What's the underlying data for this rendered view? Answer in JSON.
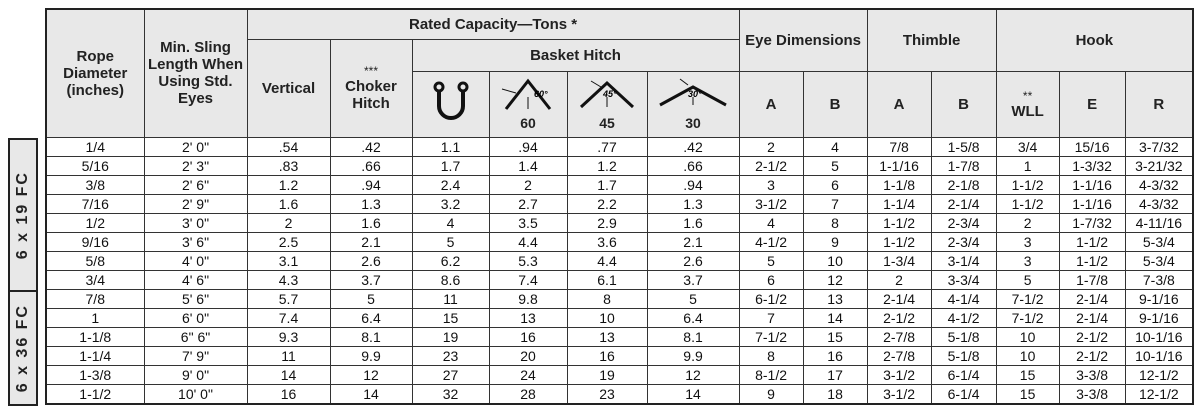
{
  "header": {
    "rope_diameter": "Rope Diameter (inches)",
    "min_sling_length": "Min. Sling Length When Using Std. Eyes",
    "rated_capacity": "Rated Capacity—Tons *",
    "vertical": "Vertical",
    "choker_note": "***",
    "choker_hitch": "Choker Hitch",
    "basket_hitch": "Basket Hitch",
    "eye_dimensions": "Eye Dimensions",
    "thimble": "Thimble",
    "hook": "Hook",
    "angles": [
      {
        "icon_label": "60°",
        "label": "60"
      },
      {
        "icon_label": "45°",
        "label": "45"
      },
      {
        "icon_label": "30°",
        "label": "30"
      }
    ],
    "eye_a": "A",
    "eye_b": "B",
    "thimble_a": "A",
    "thimble_b": "B",
    "wll_note": "**",
    "wll": "WLL",
    "e": "E",
    "r": "R"
  },
  "groups": [
    {
      "label": "6 x 19 FC",
      "rows": [
        [
          "1/4",
          "2' 0\"",
          ".54",
          ".42",
          "1.1",
          ".94",
          ".77",
          ".42",
          "2",
          "4",
          "7/8",
          "1-5/8",
          "3/4",
          "15/16",
          "3-7/32"
        ],
        [
          "5/16",
          "2' 3\"",
          ".83",
          ".66",
          "1.7",
          "1.4",
          "1.2",
          ".66",
          "2-1/2",
          "5",
          "1-1/16",
          "1-7/8",
          "1",
          "1-3/32",
          "3-21/32"
        ],
        [
          "3/8",
          "2' 6\"",
          "1.2",
          ".94",
          "2.4",
          "2",
          "1.7",
          ".94",
          "3",
          "6",
          "1-1/8",
          "2-1/8",
          "1-1/2",
          "1-1/16",
          "4-3/32"
        ],
        [
          "7/16",
          "2' 9\"",
          "1.6",
          "1.3",
          "3.2",
          "2.7",
          "2.2",
          "1.3",
          "3-1/2",
          "7",
          "1-1/4",
          "2-1/4",
          "1-1/2",
          "1-1/16",
          "4-3/32"
        ],
        [
          "1/2",
          "3' 0\"",
          "2",
          "1.6",
          "4",
          "3.5",
          "2.9",
          "1.6",
          "4",
          "8",
          "1-1/2",
          "2-3/4",
          "2",
          "1-7/32",
          "4-11/16"
        ],
        [
          "9/16",
          "3' 6\"",
          "2.5",
          "2.1",
          "5",
          "4.4",
          "3.6",
          "2.1",
          "4-1/2",
          "9",
          "1-1/2",
          "2-3/4",
          "3",
          "1-1/2",
          "5-3/4"
        ],
        [
          "5/8",
          "4' 0\"",
          "3.1",
          "2.6",
          "6.2",
          "5.3",
          "4.4",
          "2.6",
          "5",
          "10",
          "1-3/4",
          "3-1/4",
          "3",
          "1-1/2",
          "5-3/4"
        ],
        [
          "3/4",
          "4' 6\"",
          "4.3",
          "3.7",
          "8.6",
          "7.4",
          "6.1",
          "3.7",
          "6",
          "12",
          "2",
          "3-3/4",
          "5",
          "1-7/8",
          "7-3/8"
        ]
      ]
    },
    {
      "label": "6 x 36 FC",
      "rows": [
        [
          "7/8",
          "5' 6\"",
          "5.7",
          "5",
          "11",
          "9.8",
          "8",
          "5",
          "6-1/2",
          "13",
          "2-1/4",
          "4-1/4",
          "7-1/2",
          "2-1/4",
          "9-1/16"
        ],
        [
          "1",
          "6' 0\"",
          "7.4",
          "6.4",
          "15",
          "13",
          "10",
          "6.4",
          "7",
          "14",
          "2-1/2",
          "4-1/2",
          "7-1/2",
          "2-1/4",
          "9-1/16"
        ],
        [
          "1-1/8",
          "6\" 6\"",
          "9.3",
          "8.1",
          "19",
          "16",
          "13",
          "8.1",
          "7-1/2",
          "15",
          "2-7/8",
          "5-1/8",
          "10",
          "2-1/2",
          "10-1/16"
        ],
        [
          "1-1/4",
          "7' 9\"",
          "11",
          "9.9",
          "23",
          "20",
          "16",
          "9.9",
          "8",
          "16",
          "2-7/8",
          "5-1/8",
          "10",
          "2-1/2",
          "10-1/16"
        ],
        [
          "1-3/8",
          "9' 0\"",
          "14",
          "12",
          "27",
          "24",
          "19",
          "12",
          "8-1/2",
          "17",
          "3-1/2",
          "6-1/4",
          "15",
          "3-3/8",
          "12-1/2"
        ],
        [
          "1-1/2",
          "10' 0\"",
          "16",
          "14",
          "32",
          "28",
          "23",
          "14",
          "9",
          "18",
          "3-1/2",
          "6-1/4",
          "15",
          "3-3/8",
          "12-1/2"
        ]
      ]
    }
  ]
}
